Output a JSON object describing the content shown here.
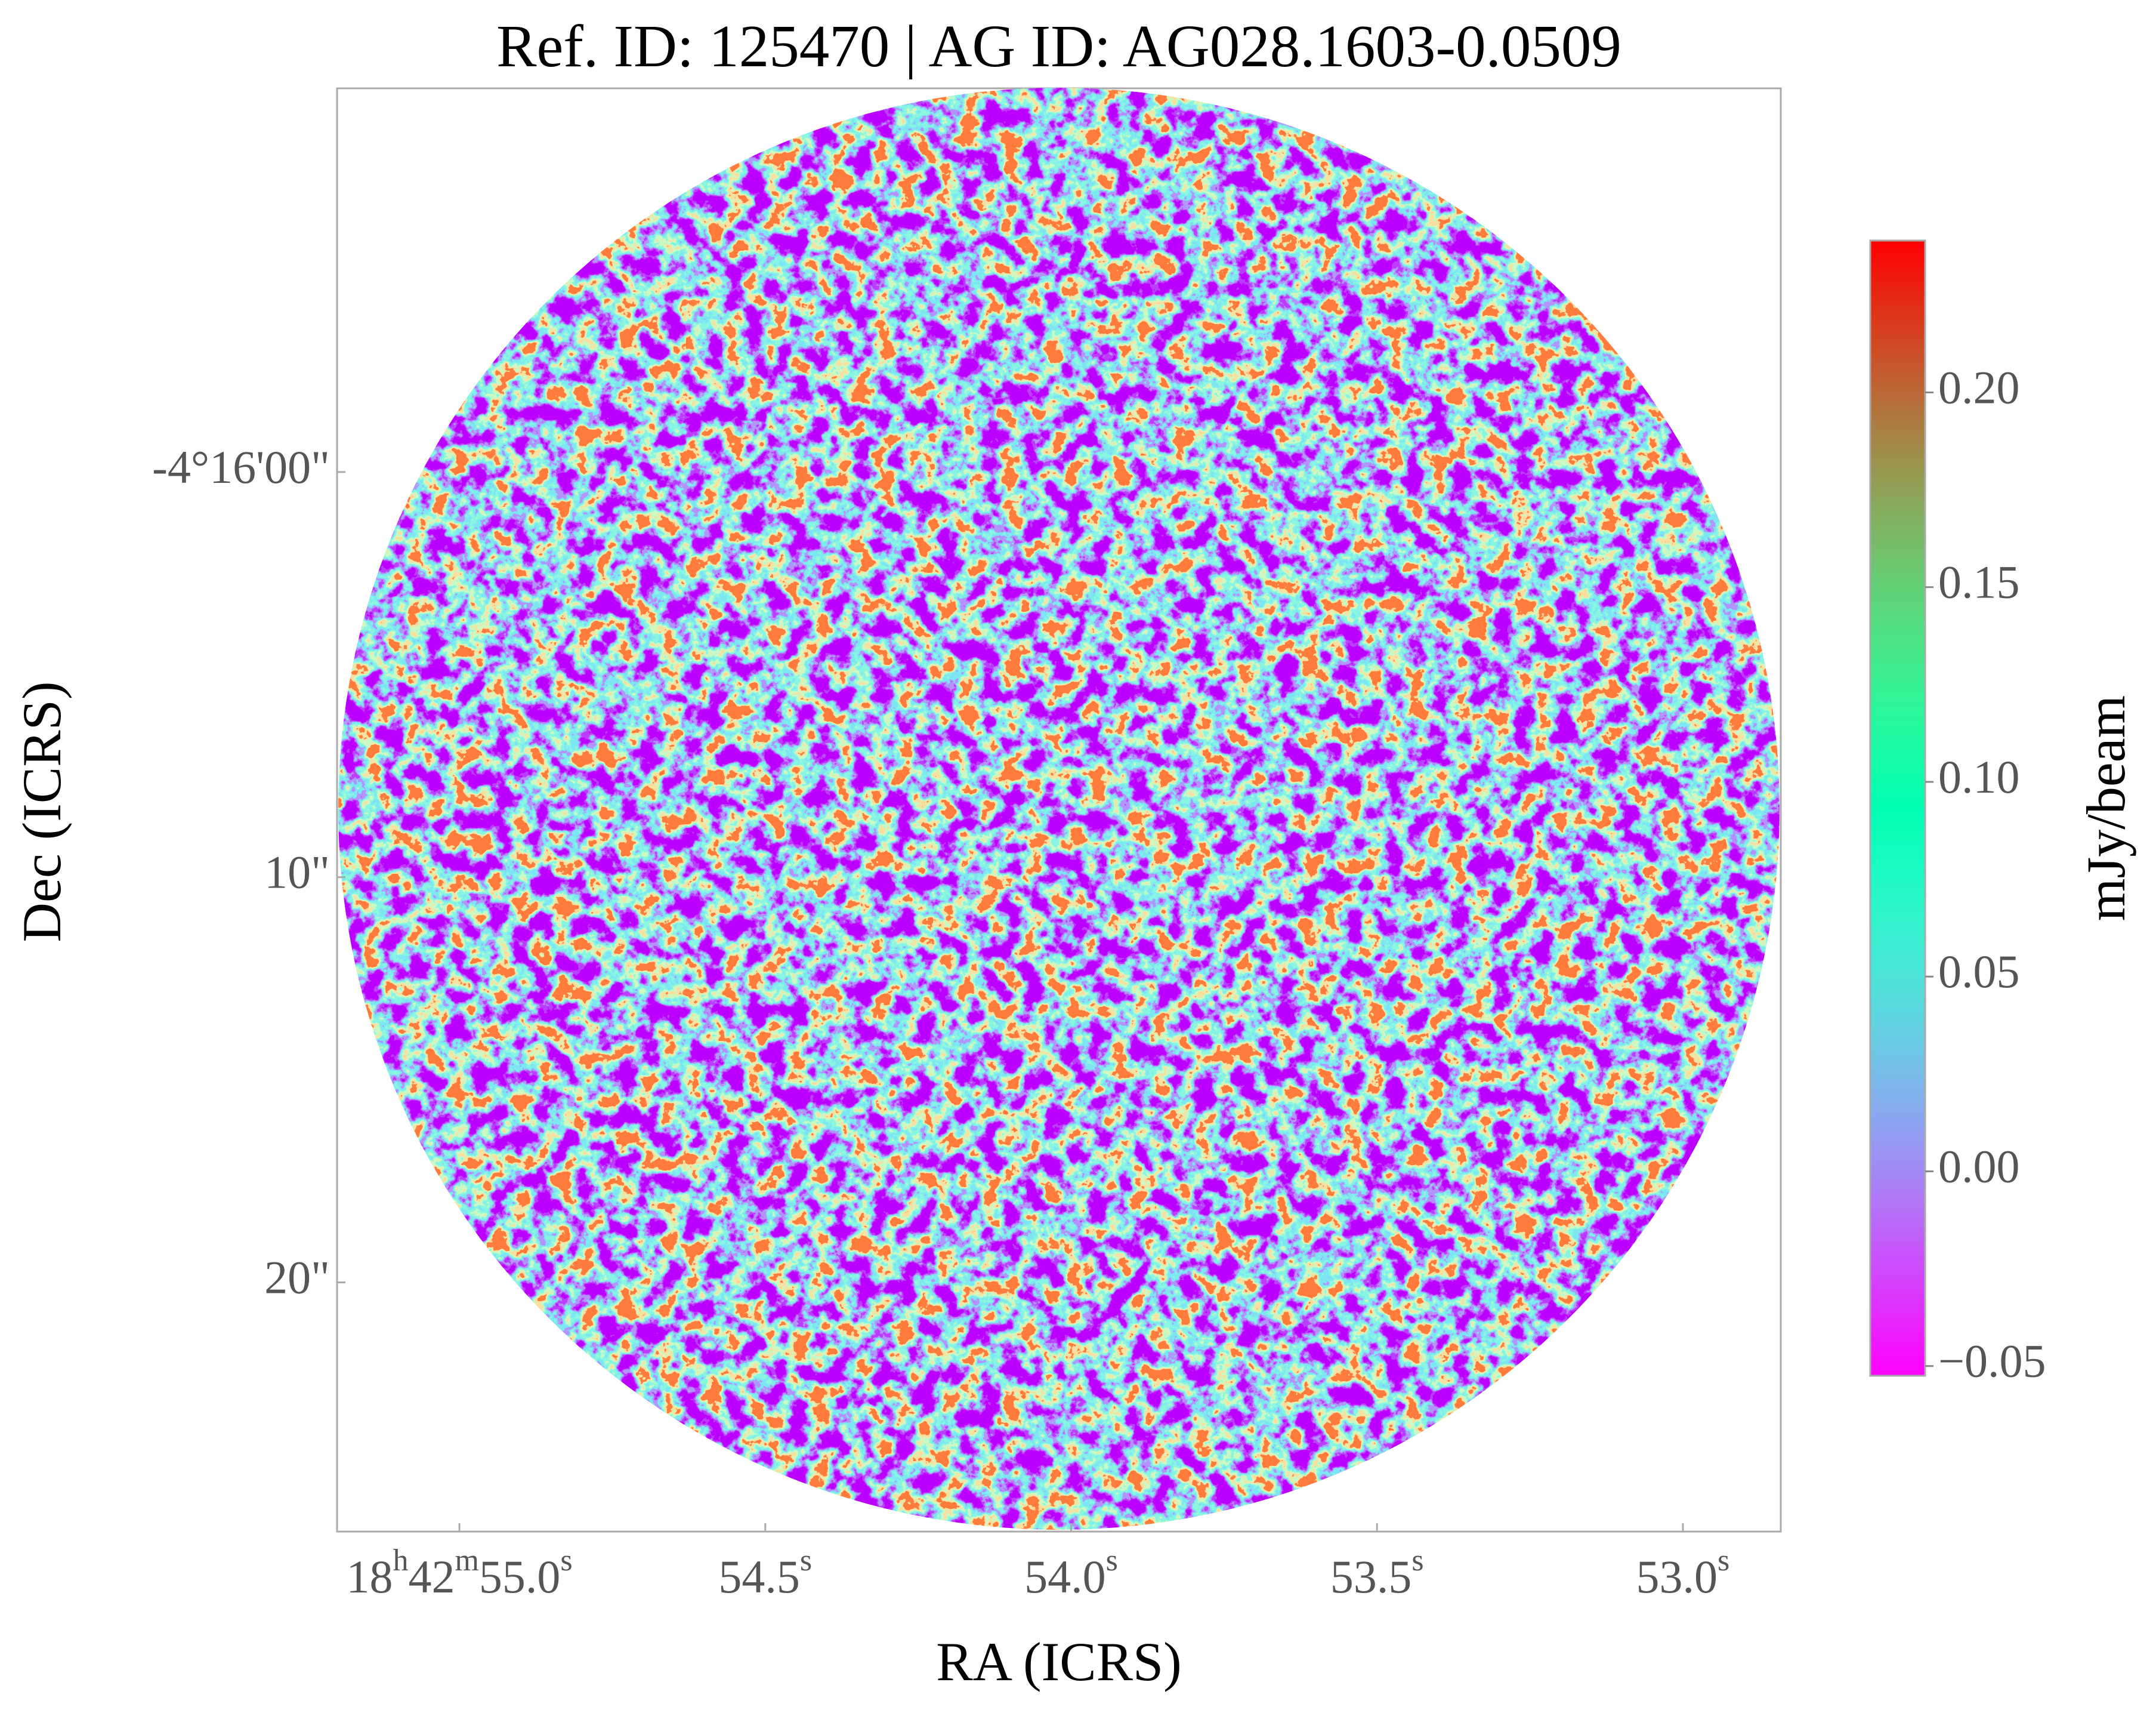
{
  "chart_data": {
    "type": "image",
    "title": "Ref. ID: 125470 | AG ID: AG028.1603-0.0509",
    "xlabel": "RA (ICRS)",
    "ylabel": "Dec (ICRS)",
    "xlim": [
      55.2,
      52.84
    ],
    "xticks": [
      {
        "value": 55.0,
        "label": "18h42m55.0s"
      },
      {
        "value": 54.5,
        "label": "54.5s"
      },
      {
        "value": 54.0,
        "label": "54.0s"
      },
      {
        "value": 53.5,
        "label": "53.5s"
      },
      {
        "value": 53.0,
        "label": "53.0s"
      }
    ],
    "ylim": [
      -9.47,
      26.15
    ],
    "yticks": [
      {
        "value": 0,
        "label": "-4°16'00\""
      },
      {
        "value": 10,
        "label": "10\""
      },
      {
        "value": 20,
        "label": "20\""
      }
    ],
    "colormap": "rainbow",
    "colorbar": {
      "label": "mJy/beam",
      "clim": [
        -0.0525,
        0.239
      ],
      "ticks": [
        {
          "value": -0.05,
          "label": "−0.05"
        },
        {
          "value": 0,
          "label": "0.00"
        },
        {
          "value": 0.05,
          "label": "0.05"
        },
        {
          "value": 0.1,
          "label": "0.10"
        },
        {
          "value": 0.15,
          "label": "0.15"
        },
        {
          "value": 0.2,
          "label": "0.20"
        }
      ]
    }
  }
}
